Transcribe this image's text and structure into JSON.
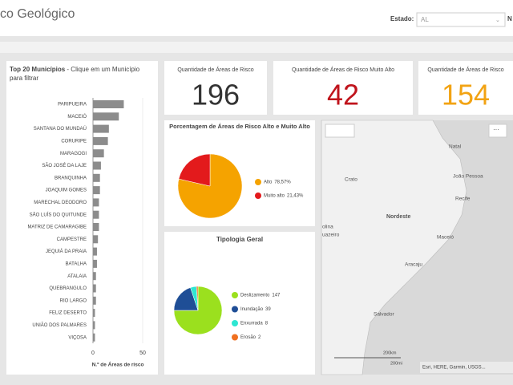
{
  "header": {
    "title": "co Geológico",
    "filter_label": "Estado:",
    "filter_value": "AL",
    "cut_label": "N"
  },
  "kpis": [
    {
      "title": "Quantidade de Áreas de Risco",
      "value": 196,
      "color": "#333333"
    },
    {
      "title": "Quantidade de Áreas de Risco Muito Alto",
      "value": 42,
      "color": "#c0141c"
    },
    {
      "title": "Quantidade de Áreas de Risco",
      "value": 154,
      "color": "#f2a313"
    }
  ],
  "chart_data": [
    {
      "type": "bar",
      "orientation": "horizontal",
      "title": "Top 20 Municípios",
      "subtitle": "- Clique em um Município para filtrar",
      "categories": [
        "PARIPUEIRA",
        "MACEIÓ",
        "SANTANA DO MUNDAÚ",
        "CORURIPE",
        "MARAGOGI",
        "SÃO JOSÉ DA LAJE",
        "BRANQUINHA",
        "JOAQUIM GOMES",
        "MARECHAL DEODORO",
        "SÃO LUÍS DO QUITUNDE",
        "MATRIZ DE CAMARAGIBE",
        "CAMPESTRE",
        "JEQUIÁ DA PRAIA",
        "BATALHA",
        "ATALAIA",
        "QUEBRANGULO",
        "RIO LARGO",
        "FELIZ DESERTO",
        "UNIÃO DOS PALMARES",
        "VIÇOSA"
      ],
      "values": [
        31,
        26,
        16,
        15,
        11,
        8,
        7,
        7,
        6,
        6,
        6,
        5,
        4,
        4,
        3,
        3,
        3,
        2,
        2,
        2
      ],
      "color": "#8c8c8c",
      "xlim": [
        0,
        50
      ],
      "xticks": [
        0,
        50
      ],
      "xlabel": "N.º de Áreas de risco"
    },
    {
      "type": "pie",
      "title": "Porcentagem de Áreas de Risco Alto e Muito Alto",
      "categories": [
        "Alto",
        "Muito alto"
      ],
      "values": [
        78.57,
        21.43
      ],
      "value_labels": [
        "78,57%",
        "21,43%"
      ],
      "colors": [
        "#f5a300",
        "#e31a1c"
      ]
    },
    {
      "type": "pie",
      "title": "Tipologia Geral",
      "categories": [
        "Deslizamento",
        "Inundação",
        "Enxurrada",
        "Erosão"
      ],
      "values": [
        147,
        39,
        8,
        2
      ],
      "colors": [
        "#9be01e",
        "#1f4e96",
        "#2ee6d2",
        "#f07020"
      ]
    }
  ],
  "map": {
    "labels": [
      "Natal",
      "João Pessoa",
      "Recife",
      "Crato",
      "Nordeste",
      "Maceió",
      "Aracaju",
      "olina",
      "uazeiro",
      "Salvador"
    ],
    "scale": [
      "200km",
      "200mi"
    ],
    "attribution": "Esri, HERE, Garmin, USGS..."
  }
}
